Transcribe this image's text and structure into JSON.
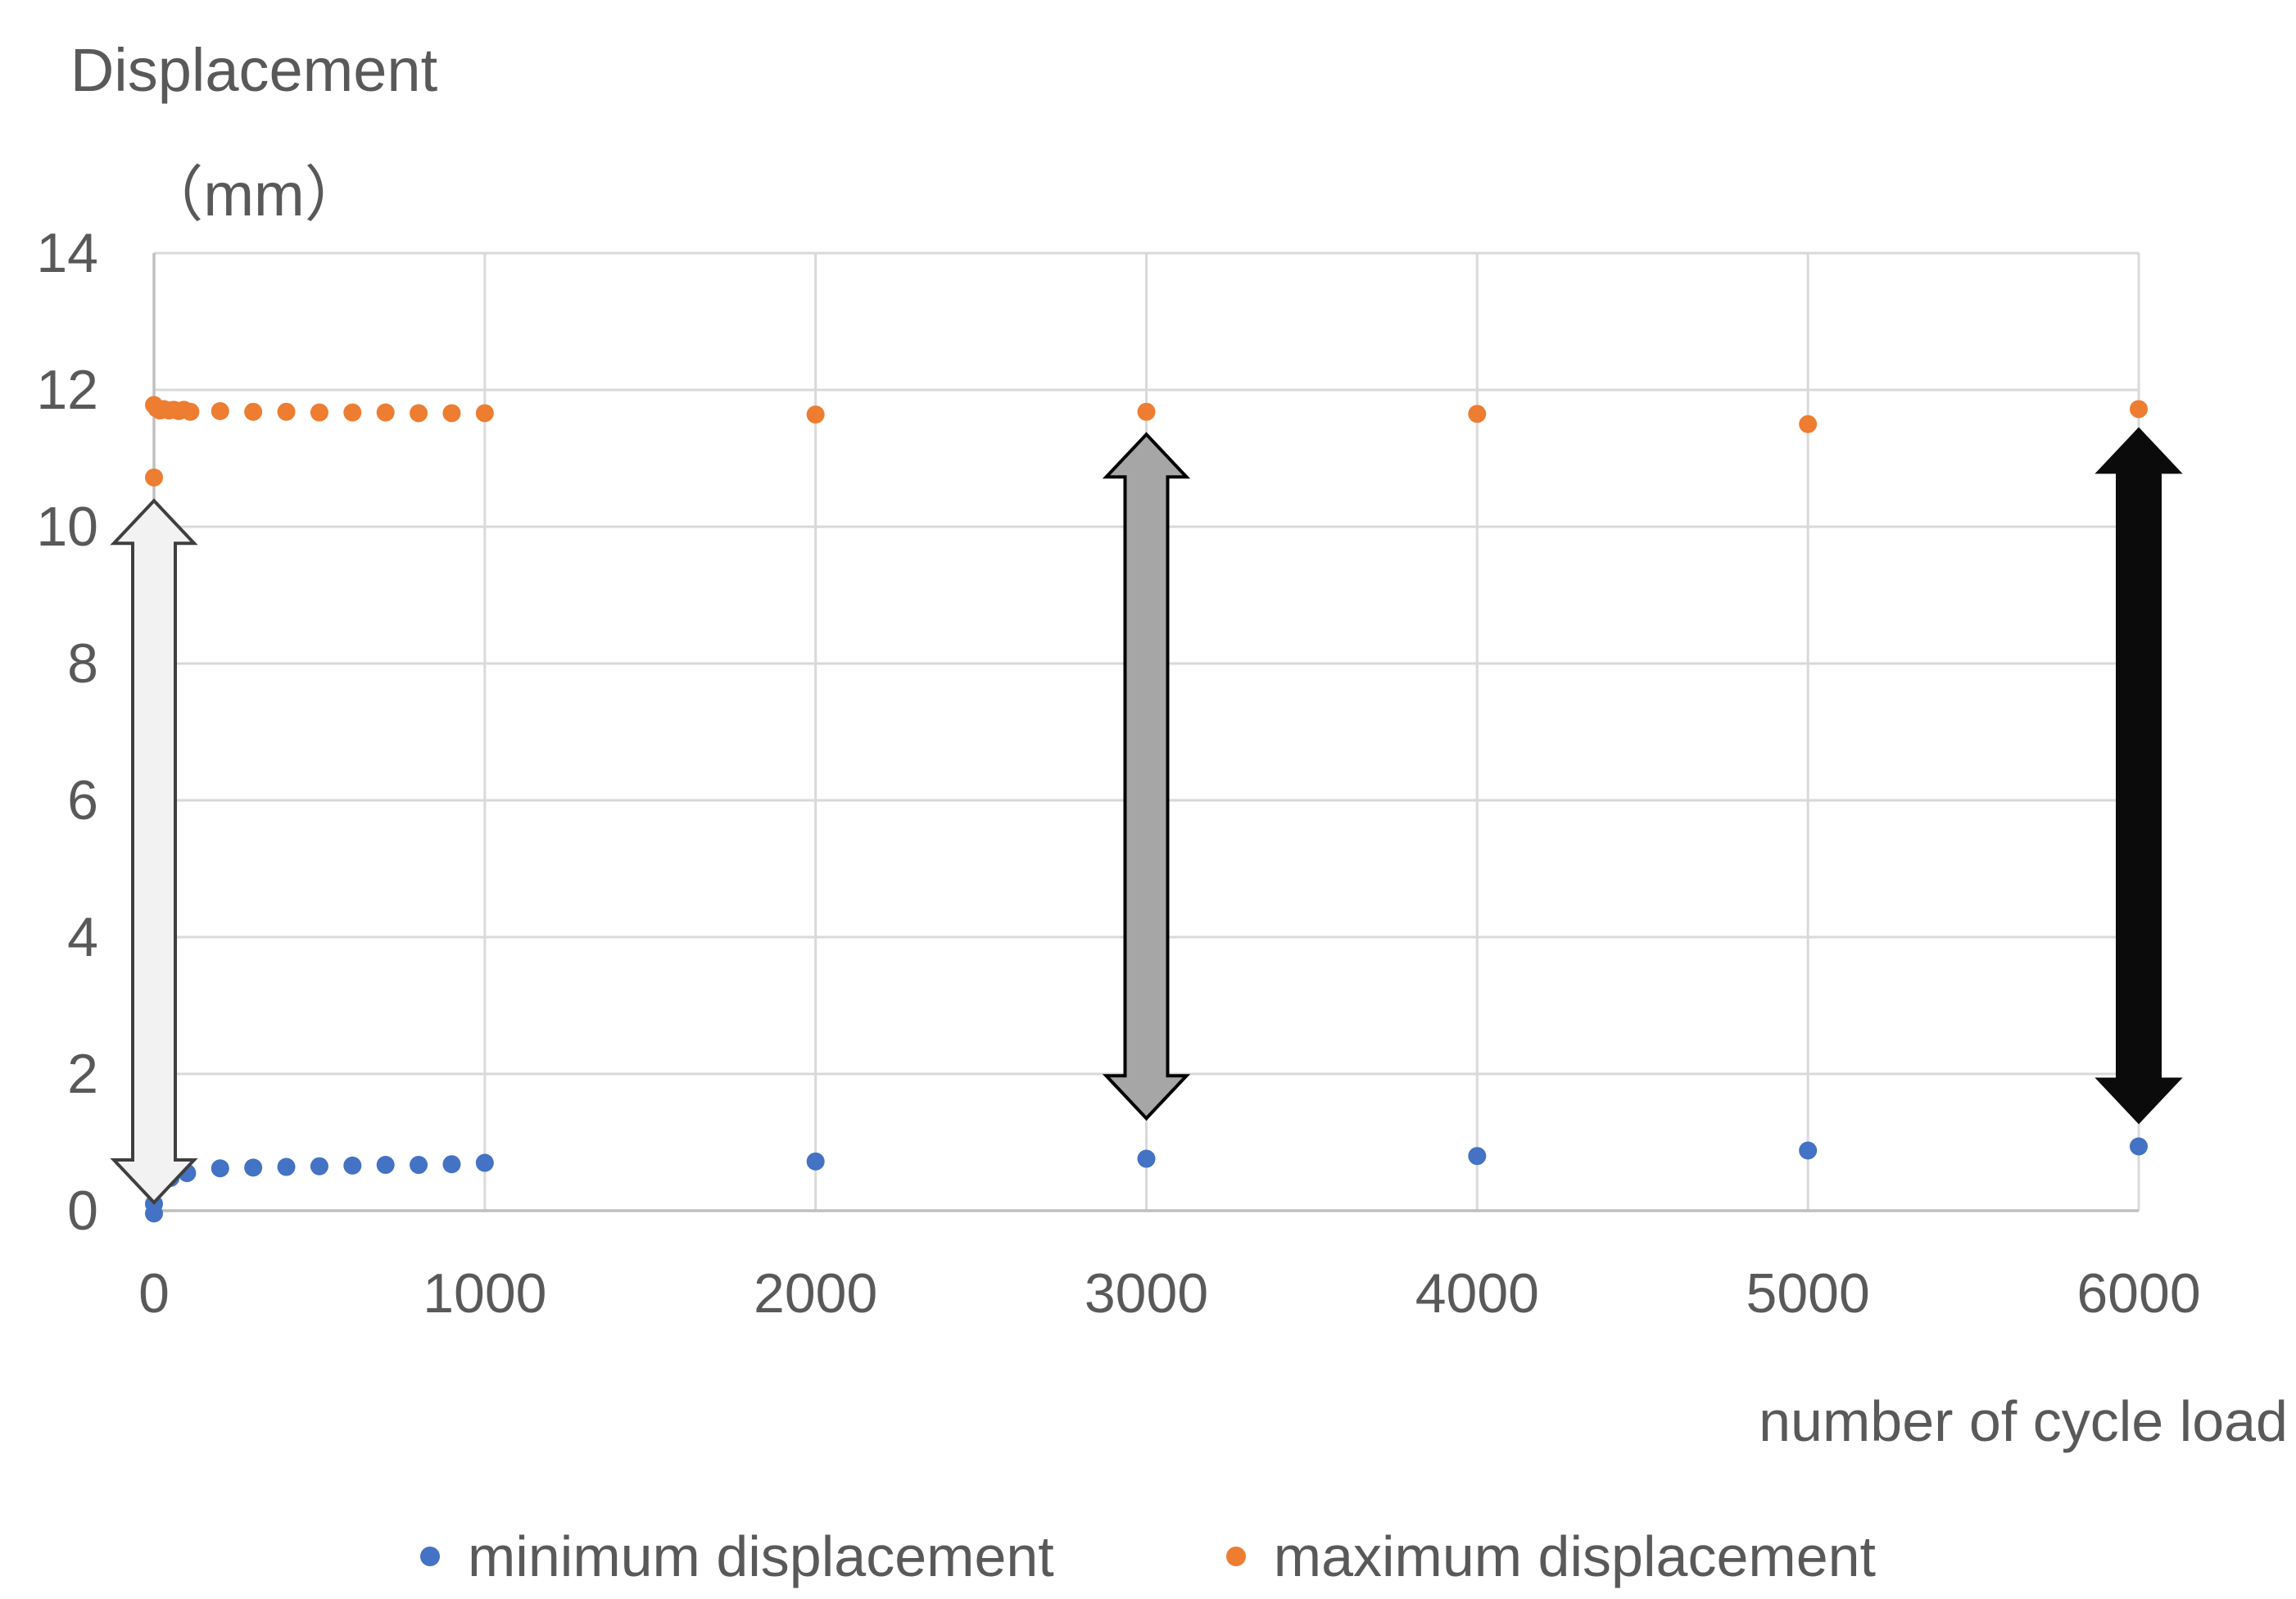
{
  "figure": {
    "y_axis_title_line1": "Displacement",
    "y_axis_title_line2": "（mm）",
    "x_axis_title": "number of cycle load"
  },
  "legend": {
    "items": [
      {
        "label": "minimum displacement",
        "color": "#4472C4"
      },
      {
        "label": "maximum displacement",
        "color": "#ED7D31"
      }
    ]
  },
  "chart_data": {
    "type": "scatter",
    "title": "",
    "xlabel": "number of cycle load",
    "ylabel": "Displacement (mm)",
    "xlim": [
      0,
      6000
    ],
    "ylim": [
      0,
      14
    ],
    "x_ticks": [
      0,
      1000,
      2000,
      3000,
      4000,
      5000,
      6000
    ],
    "y_ticks": [
      0,
      2,
      4,
      6,
      8,
      10,
      12,
      14
    ],
    "grid": true,
    "legend_position": "bottom",
    "colors": {
      "grid": "#D9D9D9",
      "axis": "#BFBFBF",
      "text": "#595959"
    },
    "series": [
      {
        "name": "minimum displacement",
        "color": "#4472C4",
        "marker_radius": 11,
        "points": [
          [
            0,
            -0.04
          ],
          [
            0,
            0.1
          ],
          [
            50,
            0.48
          ],
          [
            100,
            0.55
          ],
          [
            200,
            0.62
          ],
          [
            300,
            0.63
          ],
          [
            400,
            0.64
          ],
          [
            500,
            0.65
          ],
          [
            600,
            0.66
          ],
          [
            700,
            0.67
          ],
          [
            800,
            0.67
          ],
          [
            900,
            0.68
          ],
          [
            1000,
            0.7
          ],
          [
            2000,
            0.72
          ],
          [
            3000,
            0.76
          ],
          [
            4000,
            0.8
          ],
          [
            5000,
            0.88
          ],
          [
            6000,
            0.94
          ]
        ]
      },
      {
        "name": "maximum displacement",
        "color": "#ED7D31",
        "marker_radius": 11,
        "points": [
          [
            0,
            10.72
          ],
          [
            0,
            11.78
          ],
          [
            8,
            11.73
          ],
          [
            18,
            11.7
          ],
          [
            30,
            11.72
          ],
          [
            45,
            11.7
          ],
          [
            60,
            11.71
          ],
          [
            75,
            11.69
          ],
          [
            90,
            11.71
          ],
          [
            110,
            11.68
          ],
          [
            200,
            11.69
          ],
          [
            300,
            11.68
          ],
          [
            400,
            11.68
          ],
          [
            500,
            11.67
          ],
          [
            600,
            11.67
          ],
          [
            700,
            11.67
          ],
          [
            800,
            11.66
          ],
          [
            900,
            11.66
          ],
          [
            1000,
            11.66
          ],
          [
            2000,
            11.64
          ],
          [
            3000,
            11.68
          ],
          [
            4000,
            11.65
          ],
          [
            5000,
            11.5
          ],
          [
            6000,
            11.72
          ]
        ]
      }
    ],
    "annotations": [
      {
        "type": "double-arrow",
        "x": 0,
        "y_bottom": 0.12,
        "y_top": 10.38,
        "fill": "#F2F2F2",
        "stroke": "#3F3F3F"
      },
      {
        "type": "double-arrow",
        "x": 3000,
        "y_bottom": 1.35,
        "y_top": 11.35,
        "fill": "#A6A6A6",
        "stroke": "#000000"
      },
      {
        "type": "double-arrow",
        "x": 6000,
        "y_bottom": 1.3,
        "y_top": 11.42,
        "fill": "#0B0B0B",
        "stroke": "#0B0B0B"
      }
    ]
  }
}
